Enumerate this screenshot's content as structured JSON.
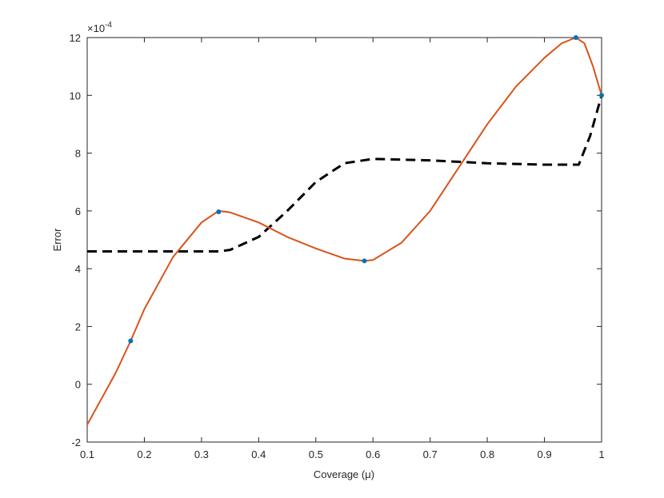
{
  "chart_data": {
    "type": "line",
    "xlabel": "Coverage (μ)",
    "ylabel": "Error",
    "y_scale_base": "×10",
    "y_scale_exponent": "-4",
    "xlim": [
      0.1,
      1
    ],
    "xticks": [
      0.1,
      0.2,
      0.3,
      0.4,
      0.5,
      0.6,
      0.7,
      0.8,
      0.9,
      1
    ],
    "ylim": [
      -2,
      12
    ],
    "yticks": [
      -2,
      0,
      2,
      4,
      6,
      8,
      10,
      12
    ],
    "box": true,
    "series": [
      {
        "color": "#000000",
        "style": "dashed",
        "width": 3,
        "x": [
          0.1,
          0.2,
          0.3,
          0.33,
          0.35,
          0.4,
          0.45,
          0.5,
          0.55,
          0.6,
          0.7,
          0.8,
          0.9,
          0.96,
          0.98,
          1.0
        ],
        "values": [
          4.6,
          4.6,
          4.6,
          4.6,
          4.65,
          5.1,
          6.0,
          7.0,
          7.65,
          7.8,
          7.75,
          7.65,
          7.6,
          7.6,
          8.6,
          10.0
        ]
      },
      {
        "color": "#d95319",
        "style": "solid",
        "width": 2,
        "x": [
          0.1,
          0.15,
          0.176,
          0.2,
          0.25,
          0.3,
          0.33,
          0.35,
          0.4,
          0.45,
          0.5,
          0.55,
          0.585,
          0.6,
          0.65,
          0.7,
          0.75,
          0.8,
          0.85,
          0.9,
          0.93,
          0.955,
          0.97,
          0.985,
          1.0
        ],
        "values": [
          -1.4,
          0.4,
          1.5,
          2.6,
          4.4,
          5.6,
          6.0,
          5.95,
          5.6,
          5.1,
          4.7,
          4.35,
          4.27,
          4.3,
          4.9,
          6.0,
          7.5,
          9.0,
          10.3,
          11.3,
          11.8,
          12.0,
          11.8,
          11.0,
          10.0
        ]
      },
      {
        "color": "#0072bd",
        "style": "markers",
        "x": [
          0.176,
          0.33,
          0.585,
          0.955,
          1.0
        ],
        "values": [
          1.5,
          5.97,
          4.27,
          12.0,
          10.0
        ]
      }
    ]
  }
}
